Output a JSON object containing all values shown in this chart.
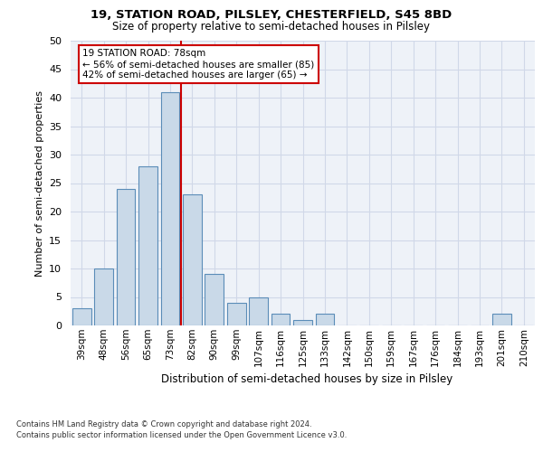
{
  "title1": "19, STATION ROAD, PILSLEY, CHESTERFIELD, S45 8BD",
  "title2": "Size of property relative to semi-detached houses in Pilsley",
  "xlabel": "Distribution of semi-detached houses by size in Pilsley",
  "ylabel": "Number of semi-detached properties",
  "categories": [
    "39sqm",
    "48sqm",
    "56sqm",
    "65sqm",
    "73sqm",
    "82sqm",
    "90sqm",
    "99sqm",
    "107sqm",
    "116sqm",
    "125sqm",
    "133sqm",
    "142sqm",
    "150sqm",
    "159sqm",
    "167sqm",
    "176sqm",
    "184sqm",
    "193sqm",
    "201sqm",
    "210sqm"
  ],
  "values": [
    3,
    10,
    24,
    28,
    41,
    23,
    9,
    4,
    5,
    2,
    1,
    2,
    0,
    0,
    0,
    0,
    0,
    0,
    0,
    2,
    0
  ],
  "bar_color": "#c9d9e8",
  "bar_edge_color": "#5b8db8",
  "property_label": "19 STATION ROAD: 78sqm",
  "pct_smaller": 56,
  "pct_larger": 42,
  "n_smaller": 85,
  "n_larger": 65,
  "vline_x_index": 4.5,
  "annotation_box_color": "#cc0000",
  "grid_color": "#d0d8e8",
  "background_color": "#eef2f8",
  "ylim": [
    0,
    50
  ],
  "yticks": [
    0,
    5,
    10,
    15,
    20,
    25,
    30,
    35,
    40,
    45,
    50
  ],
  "footnote1": "Contains HM Land Registry data © Crown copyright and database right 2024.",
  "footnote2": "Contains public sector information licensed under the Open Government Licence v3.0."
}
